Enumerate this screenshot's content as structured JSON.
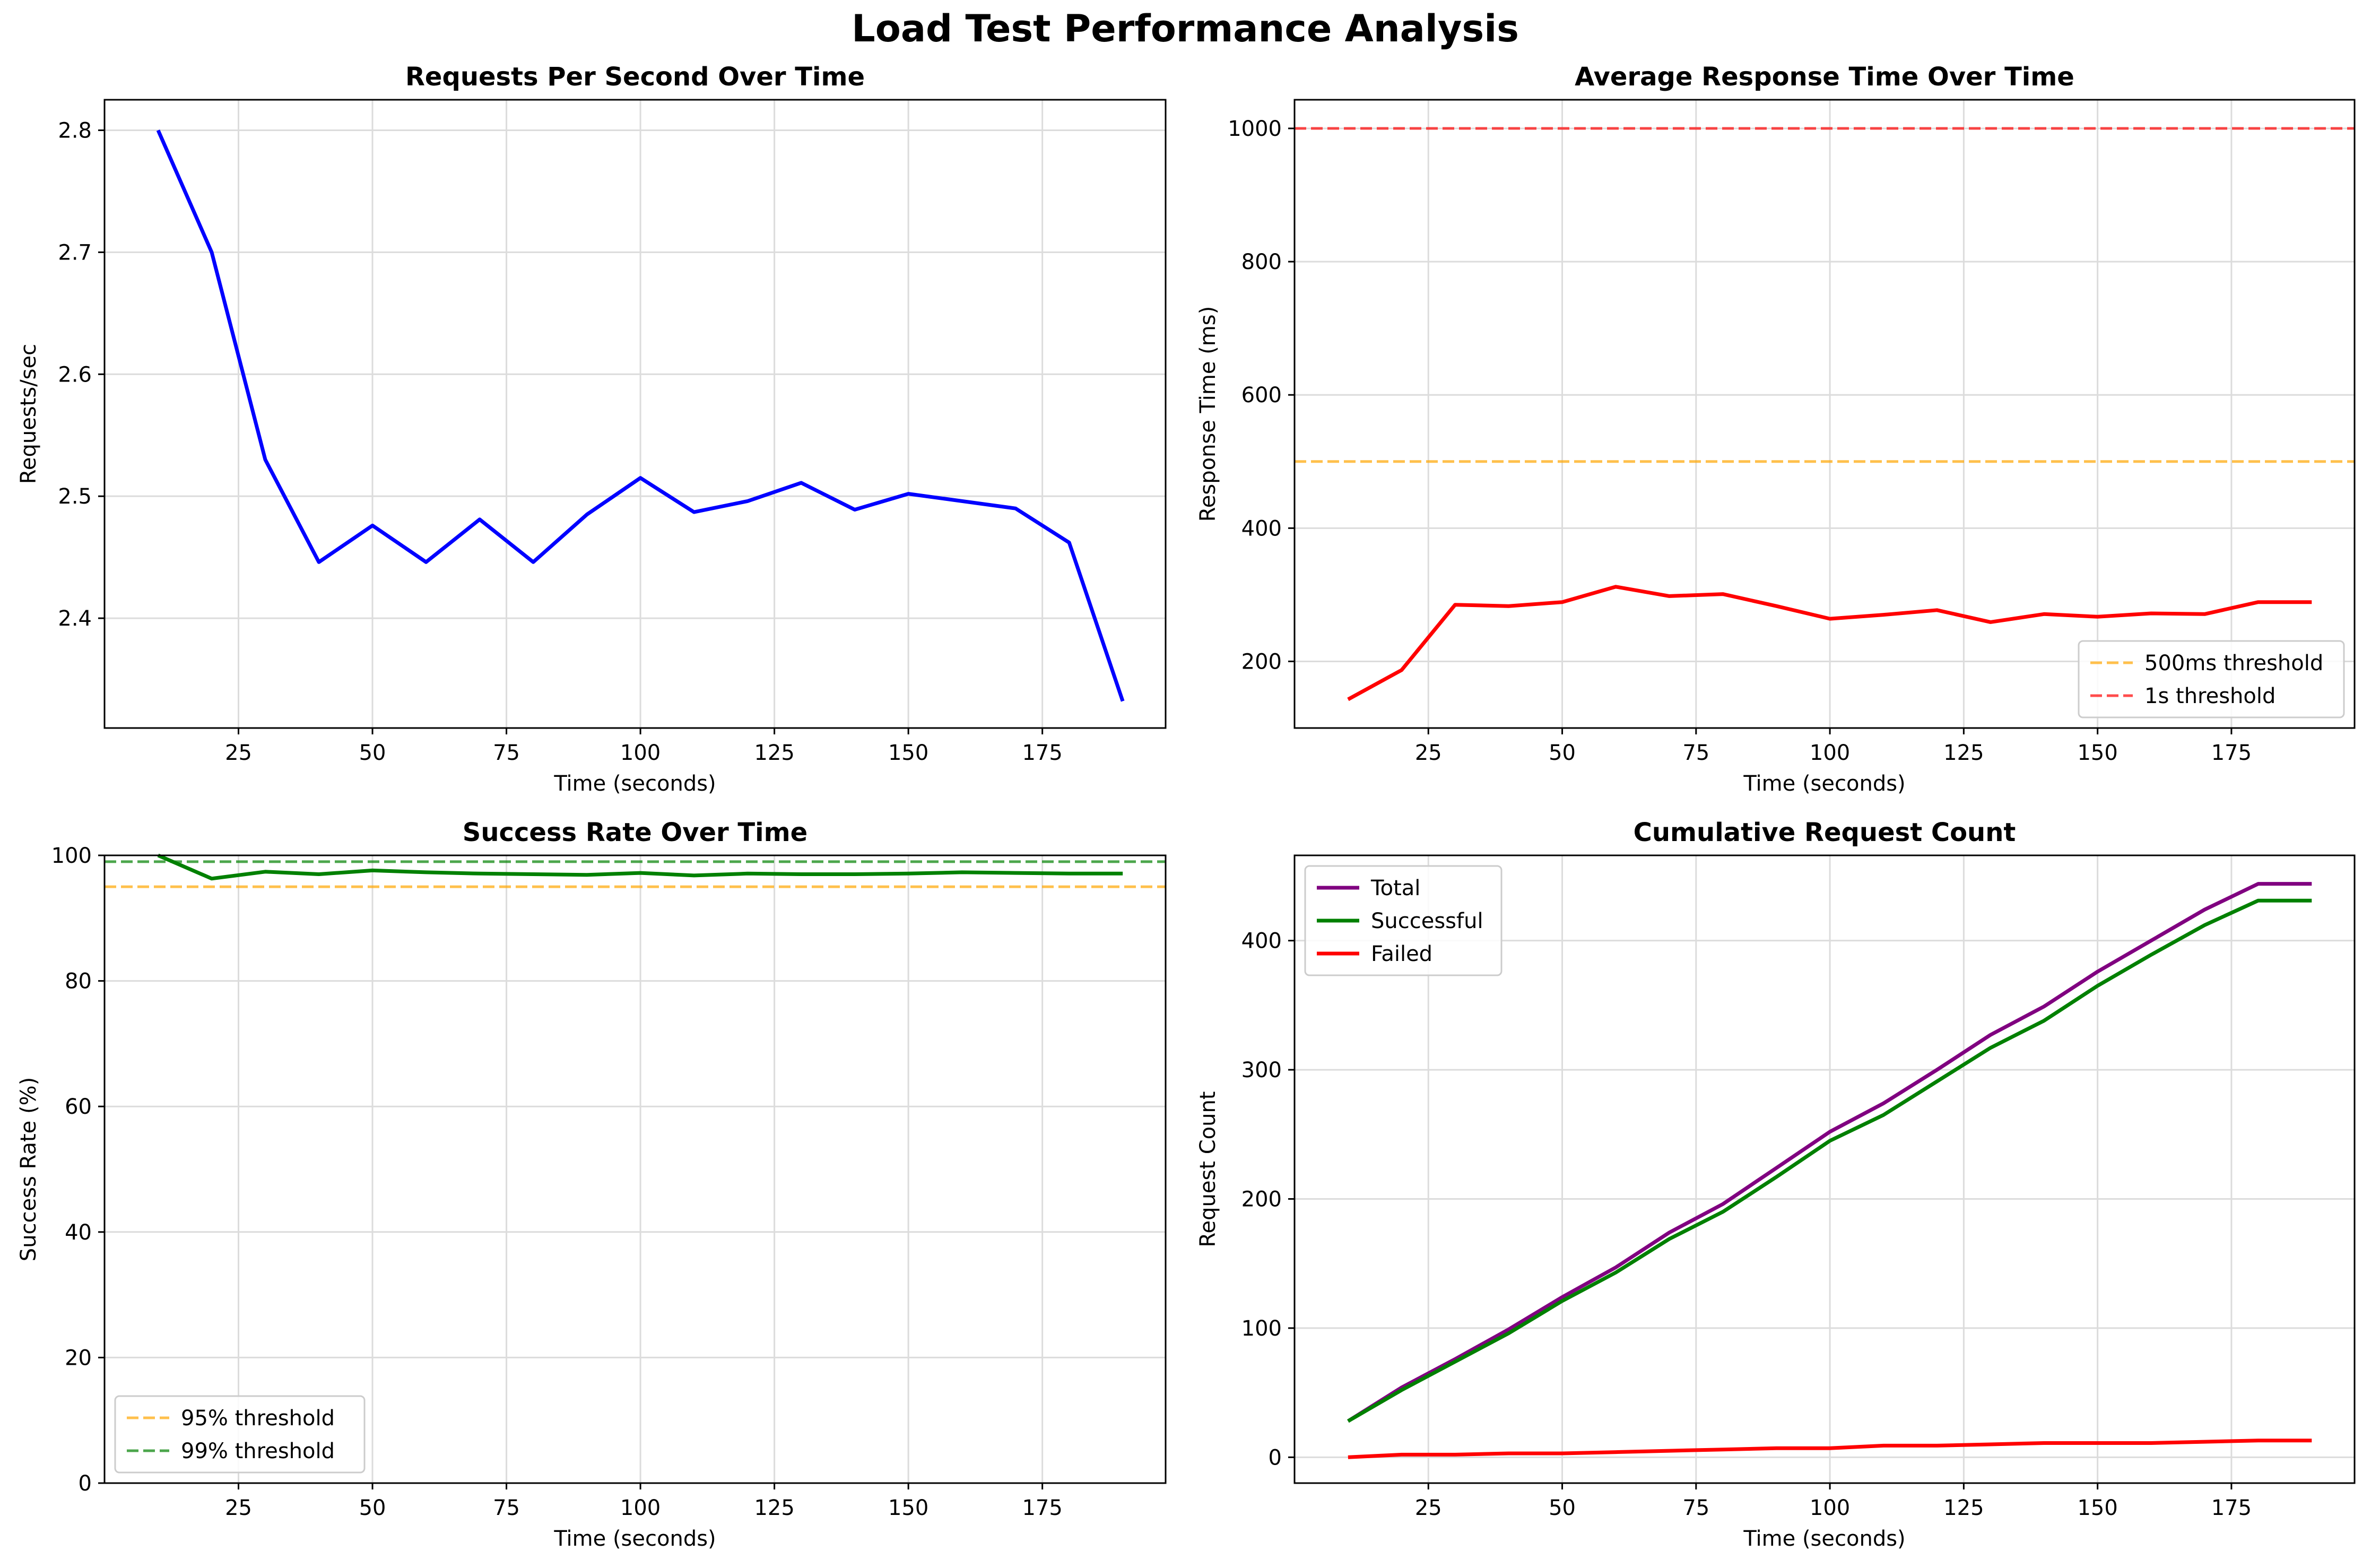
{
  "figure": {
    "title": "Load Test Performance Analysis"
  },
  "chart_data": [
    {
      "id": "rps",
      "type": "line",
      "title": "Requests Per Second Over Time",
      "xlabel": "Time (seconds)",
      "ylabel": "Requests/sec",
      "xlim": [
        0,
        198
      ],
      "ylim": [
        2.31,
        2.825
      ],
      "xticks": [
        25,
        50,
        75,
        100,
        125,
        150,
        175
      ],
      "xtick_labels": [
        "25",
        "50",
        "75",
        "100",
        "125",
        "150",
        "175"
      ],
      "yticks": [
        2.4,
        2.5,
        2.6,
        2.7,
        2.8
      ],
      "ytick_labels": [
        "2.4",
        "2.5",
        "2.6",
        "2.7",
        "2.8"
      ],
      "grid": true,
      "legend": null,
      "hlines": [],
      "series": [
        {
          "color": "#0000ff",
          "x": [
            10,
            20,
            30,
            40,
            50,
            60,
            70,
            80,
            90,
            100,
            110,
            120,
            130,
            140,
            150,
            160,
            170,
            180,
            190
          ],
          "y": [
            2.8,
            2.7,
            2.53,
            2.446,
            2.476,
            2.446,
            2.481,
            2.446,
            2.485,
            2.515,
            2.487,
            2.496,
            2.511,
            2.489,
            2.502,
            2.496,
            2.49,
            2.462,
            2.332
          ]
        }
      ]
    },
    {
      "id": "resp",
      "type": "line",
      "title": "Average Response Time Over Time",
      "xlabel": "Time (seconds)",
      "ylabel": "Response Time (ms)",
      "xlim": [
        0,
        198
      ],
      "ylim": [
        100,
        1043
      ],
      "xticks": [
        25,
        50,
        75,
        100,
        125,
        150,
        175
      ],
      "xtick_labels": [
        "25",
        "50",
        "75",
        "100",
        "125",
        "150",
        "175"
      ],
      "yticks": [
        200,
        400,
        600,
        800,
        1000
      ],
      "ytick_labels": [
        "200",
        "400",
        "600",
        "800",
        "1000"
      ],
      "grid": true,
      "legend": "lower-right",
      "hlines": [
        {
          "name": "500ms threshold",
          "y": 500,
          "color": "#ffa500",
          "opacity": 0.7
        },
        {
          "name": "1s threshold",
          "y": 1000,
          "color": "#ff0000",
          "opacity": 0.7
        }
      ],
      "series": [
        {
          "color": "#ff0000",
          "x": [
            10,
            20,
            30,
            40,
            50,
            60,
            70,
            80,
            90,
            100,
            110,
            120,
            130,
            140,
            150,
            160,
            170,
            180,
            190
          ],
          "y": [
            143,
            187,
            285,
            283,
            289,
            312,
            298,
            301,
            283,
            264,
            270,
            277,
            259,
            271,
            267,
            272,
            271,
            289,
            289
          ]
        }
      ]
    },
    {
      "id": "success",
      "type": "line",
      "title": "Success Rate Over Time",
      "xlabel": "Time (seconds)",
      "ylabel": "Success Rate (%)",
      "xlim": [
        0,
        198
      ],
      "ylim": [
        0,
        100
      ],
      "xticks": [
        25,
        50,
        75,
        100,
        125,
        150,
        175
      ],
      "xtick_labels": [
        "25",
        "50",
        "75",
        "100",
        "125",
        "150",
        "175"
      ],
      "yticks": [
        0,
        20,
        40,
        60,
        80,
        100
      ],
      "ytick_labels": [
        "0",
        "20",
        "40",
        "60",
        "80",
        "100"
      ],
      "grid": true,
      "legend": "lower-left",
      "hlines": [
        {
          "name": "95% threshold",
          "y": 95,
          "color": "#ffa500",
          "opacity": 0.7
        },
        {
          "name": "99% threshold",
          "y": 99,
          "color": "#008000",
          "opacity": 0.7
        }
      ],
      "series": [
        {
          "color": "#008000",
          "x": [
            10,
            20,
            30,
            40,
            50,
            60,
            70,
            80,
            90,
            100,
            110,
            120,
            130,
            140,
            150,
            160,
            170,
            180,
            190
          ],
          "y": [
            100,
            96.3,
            97.4,
            97.0,
            97.6,
            97.3,
            97.1,
            97.0,
            96.9,
            97.2,
            96.8,
            97.1,
            97.0,
            97.0,
            97.1,
            97.3,
            97.2,
            97.1,
            97.1
          ]
        }
      ]
    },
    {
      "id": "cumulative",
      "type": "line",
      "title": "Cumulative Request Count",
      "xlabel": "",
      "ylabel": "Request Count",
      "xlim": [
        0,
        198
      ],
      "ylim": [
        -20,
        466
      ],
      "xticks": [
        25,
        50,
        75,
        100,
        125,
        150,
        175
      ],
      "xtick_labels": [
        "25",
        "50",
        "75",
        "100",
        "125",
        "150",
        "175"
      ],
      "yticks": [
        0,
        100,
        200,
        300,
        400
      ],
      "ytick_labels": [
        "0",
        "100",
        "200",
        "300",
        "400"
      ],
      "grid": true,
      "legend": "upper-left",
      "hlines": [],
      "series": [
        {
          "name": "Total",
          "color": "#800080",
          "x": [
            10,
            20,
            30,
            40,
            50,
            60,
            70,
            80,
            90,
            100,
            110,
            120,
            130,
            140,
            150,
            160,
            170,
            180,
            190
          ],
          "y": [
            28,
            54,
            76,
            99,
            124,
            147,
            174,
            196,
            224,
            252,
            274,
            300,
            327,
            349,
            376,
            400,
            424,
            444,
            444
          ]
        },
        {
          "name": "Successful",
          "color": "#008000",
          "x": [
            10,
            20,
            30,
            40,
            50,
            60,
            70,
            80,
            90,
            100,
            110,
            120,
            130,
            140,
            150,
            160,
            170,
            180,
            190
          ],
          "y": [
            28,
            52,
            74,
            96,
            121,
            143,
            169,
            190,
            217,
            245,
            265,
            291,
            317,
            338,
            365,
            389,
            412,
            431,
            431
          ]
        },
        {
          "name": "Failed",
          "color": "#ff0000",
          "x": [
            10,
            20,
            30,
            40,
            50,
            60,
            70,
            80,
            90,
            100,
            110,
            120,
            130,
            140,
            150,
            160,
            170,
            180,
            190
          ],
          "y": [
            0,
            2,
            2,
            3,
            3,
            4,
            5,
            6,
            7,
            7,
            9,
            9,
            10,
            11,
            11,
            11,
            12,
            13,
            13
          ]
        }
      ]
    }
  ],
  "bottom_right_xlabel": "Time (seconds)"
}
